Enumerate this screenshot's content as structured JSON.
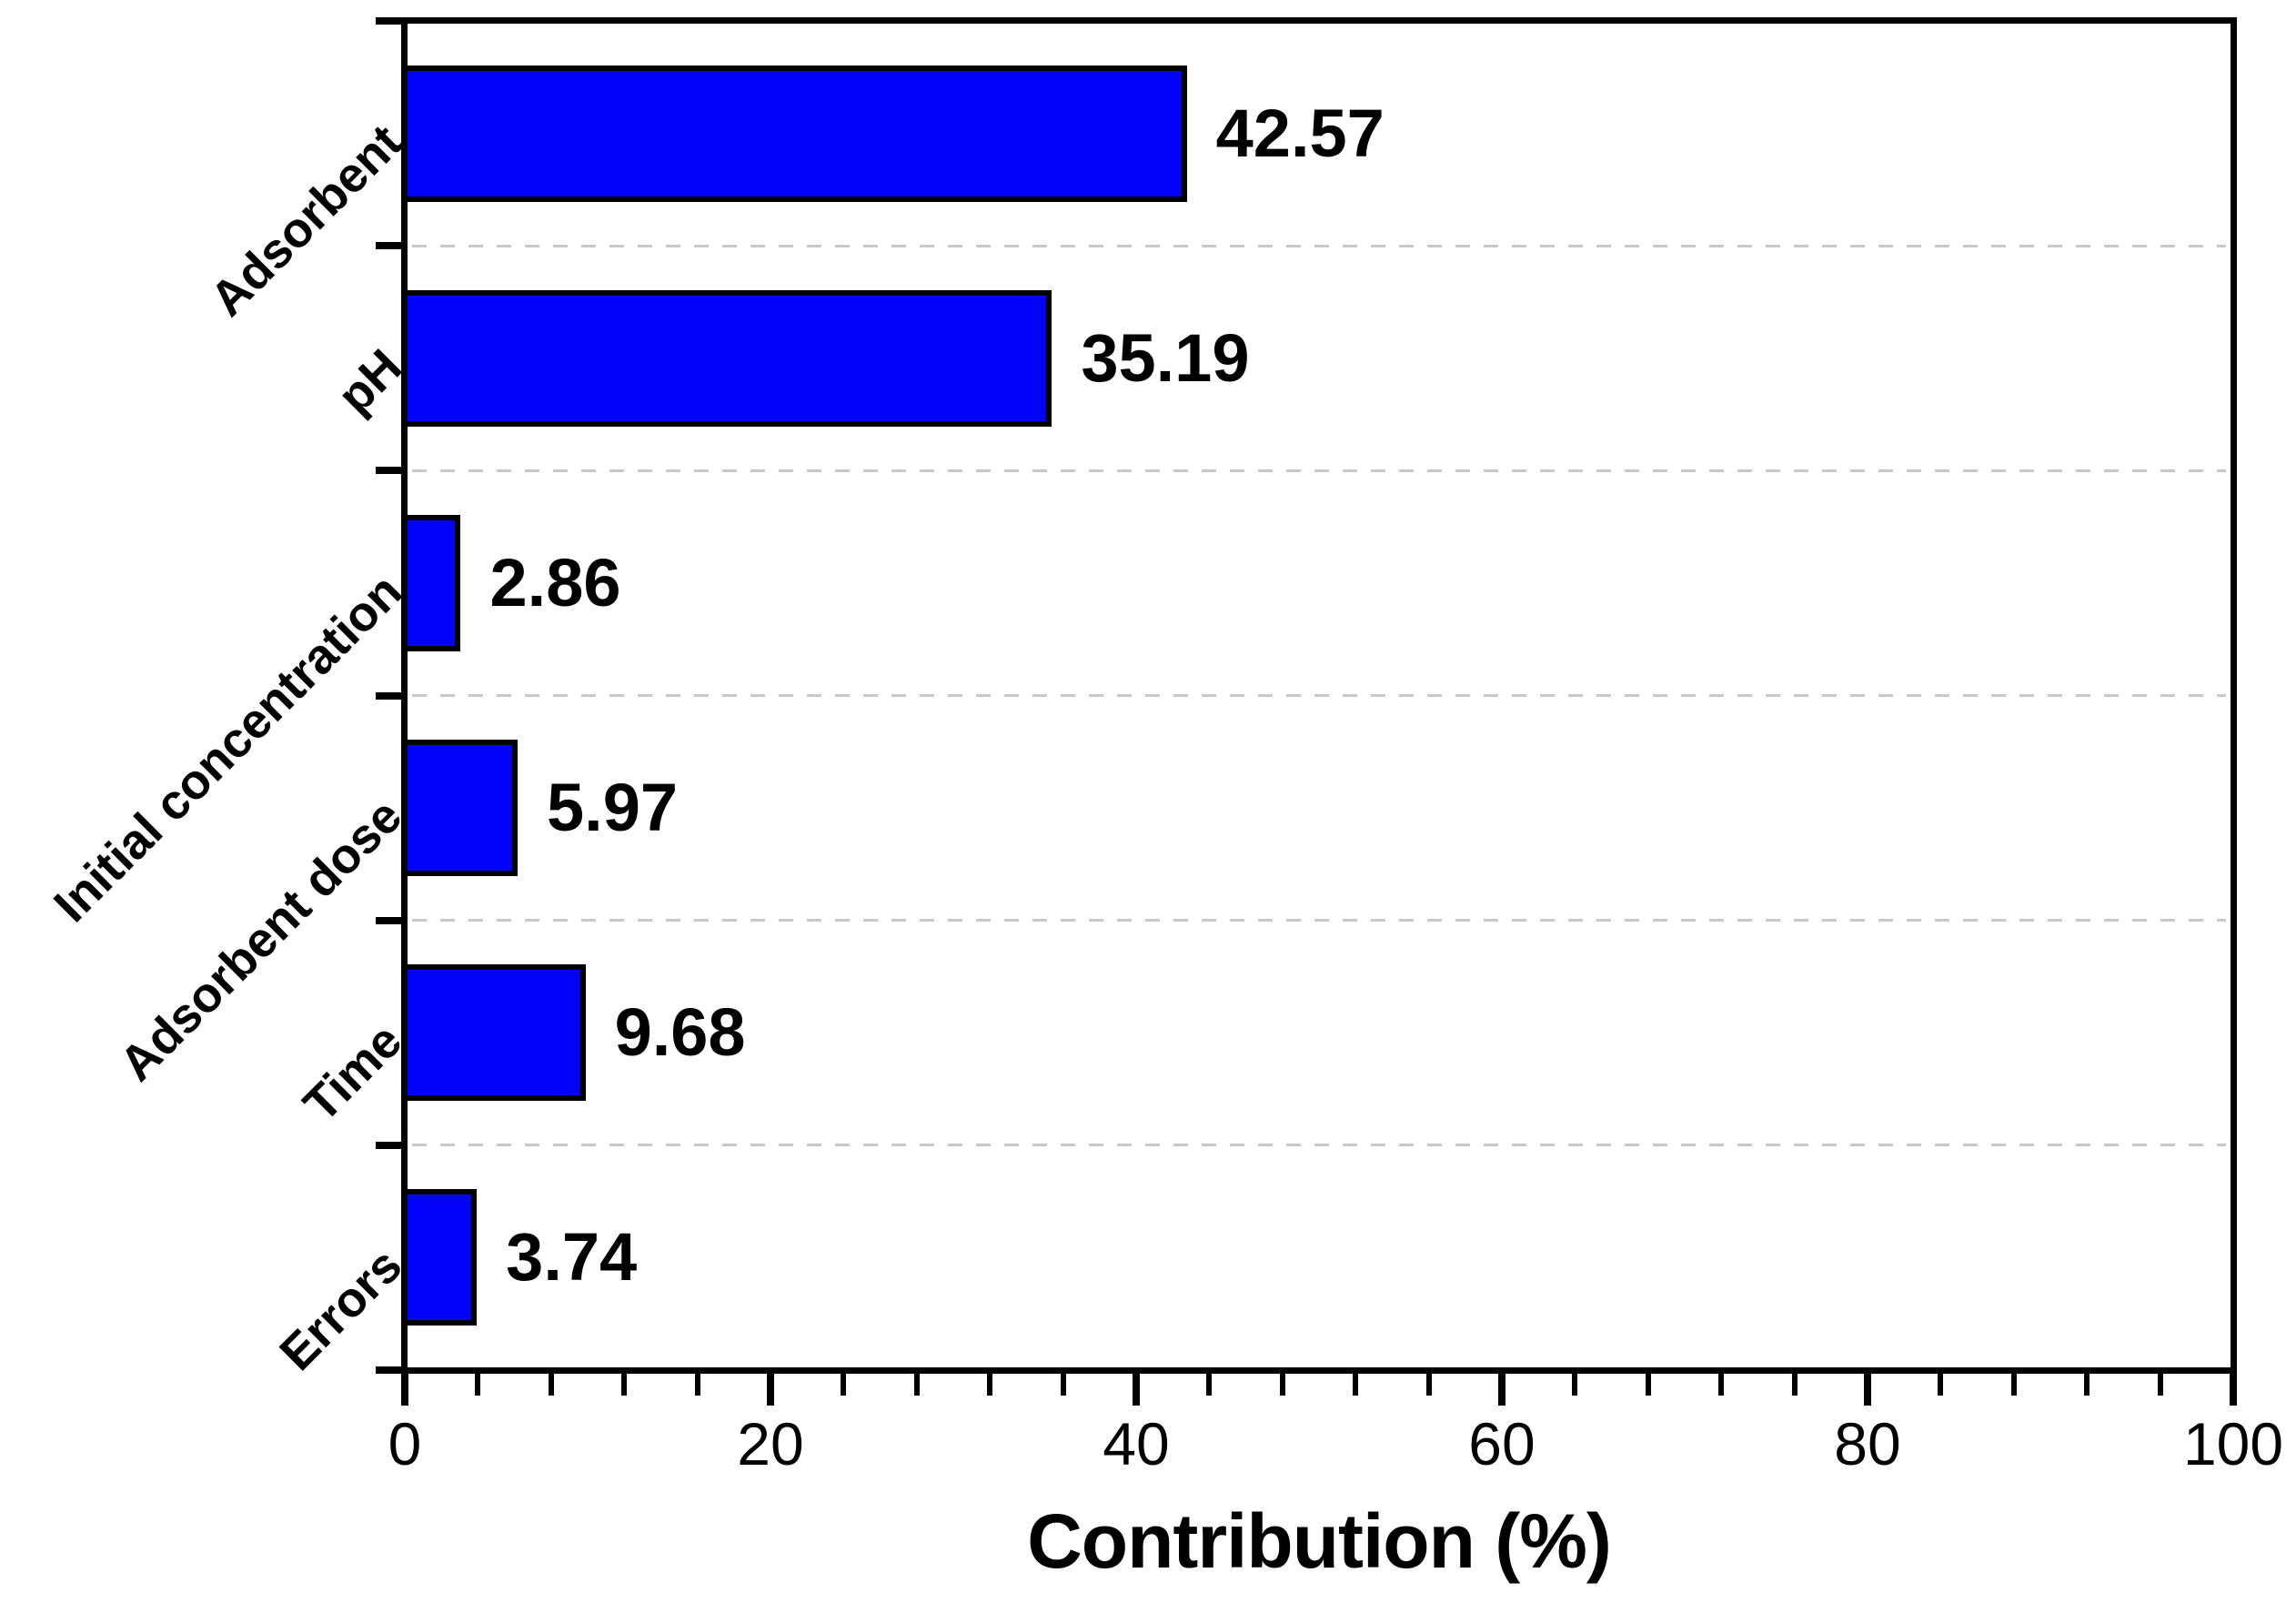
{
  "chart_data": {
    "type": "bar",
    "orientation": "horizontal",
    "title": "",
    "xlabel": "Contribution (%)",
    "ylabel": "",
    "categories": [
      "Adsorbent",
      "pH",
      "Initial concentration",
      "Adsorbent dose",
      "Time",
      "Errors"
    ],
    "values": [
      42.57,
      35.19,
      2.86,
      5.97,
      9.68,
      3.74
    ],
    "value_labels": [
      "42.57",
      "35.19",
      "2.86",
      "5.97",
      "9.68",
      "3.74"
    ],
    "xlim": [
      0,
      100
    ],
    "x_major_ticks": [
      0,
      20,
      40,
      60,
      80,
      100
    ],
    "x_tick_labels": [
      "0",
      "20",
      "40",
      "60",
      "80",
      "100"
    ],
    "x_minor_tick_step": 4,
    "grid": {
      "style": "dashed",
      "color": "#c9c9c9",
      "placement": "between-categories"
    },
    "bar_color": "#0202f8",
    "bar_border_color": "#000000",
    "axis_color": "#000000",
    "background_color": "#ffffff",
    "legend_visible": false
  }
}
